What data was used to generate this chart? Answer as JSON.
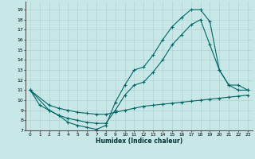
{
  "xlabel": "Humidex (Indice chaleur)",
  "bg_color": "#c8e8e8",
  "line_color": "#006666",
  "xlim": [
    -0.5,
    23.5
  ],
  "ylim": [
    7,
    19.8
  ],
  "xticks": [
    0,
    1,
    2,
    3,
    4,
    5,
    6,
    7,
    8,
    9,
    10,
    11,
    12,
    13,
    14,
    15,
    16,
    17,
    18,
    19,
    20,
    21,
    22,
    23
  ],
  "yticks": [
    7,
    8,
    9,
    10,
    11,
    12,
    13,
    14,
    15,
    16,
    17,
    18,
    19
  ],
  "line1": {
    "x": [
      0,
      1,
      2,
      3,
      4,
      5,
      6,
      7,
      8,
      9,
      10,
      11,
      12,
      13,
      14,
      15,
      16,
      17,
      18,
      19,
      20,
      21,
      22,
      23
    ],
    "y": [
      11,
      9.5,
      9,
      8.5,
      7.8,
      7.5,
      7.3,
      7.1,
      7.5,
      9.8,
      11.5,
      13,
      13.3,
      14.5,
      16,
      17.3,
      18.2,
      19.0,
      19.0,
      17.8,
      13,
      11.5,
      11,
      11
    ]
  },
  "line2": {
    "x": [
      0,
      2,
      3,
      4,
      5,
      6,
      7,
      8,
      9,
      10,
      11,
      12,
      13,
      14,
      15,
      16,
      17,
      18,
      19,
      20,
      21,
      22,
      23
    ],
    "y": [
      11,
      9,
      8.5,
      8.2,
      8.0,
      7.8,
      7.7,
      7.7,
      9.0,
      10.5,
      11.5,
      11.8,
      12.8,
      14,
      15.5,
      16.5,
      17.5,
      18,
      15.5,
      13,
      11.5,
      11.5,
      11
    ]
  },
  "line3": {
    "x": [
      0,
      2,
      3,
      4,
      5,
      6,
      7,
      8,
      9,
      10,
      11,
      12,
      13,
      14,
      15,
      16,
      17,
      18,
      19,
      20,
      21,
      22,
      23
    ],
    "y": [
      11,
      9.5,
      9.2,
      9.0,
      8.8,
      8.7,
      8.6,
      8.6,
      8.8,
      9.0,
      9.2,
      9.4,
      9.5,
      9.6,
      9.7,
      9.8,
      9.9,
      10.0,
      10.1,
      10.2,
      10.3,
      10.4,
      10.5
    ]
  }
}
